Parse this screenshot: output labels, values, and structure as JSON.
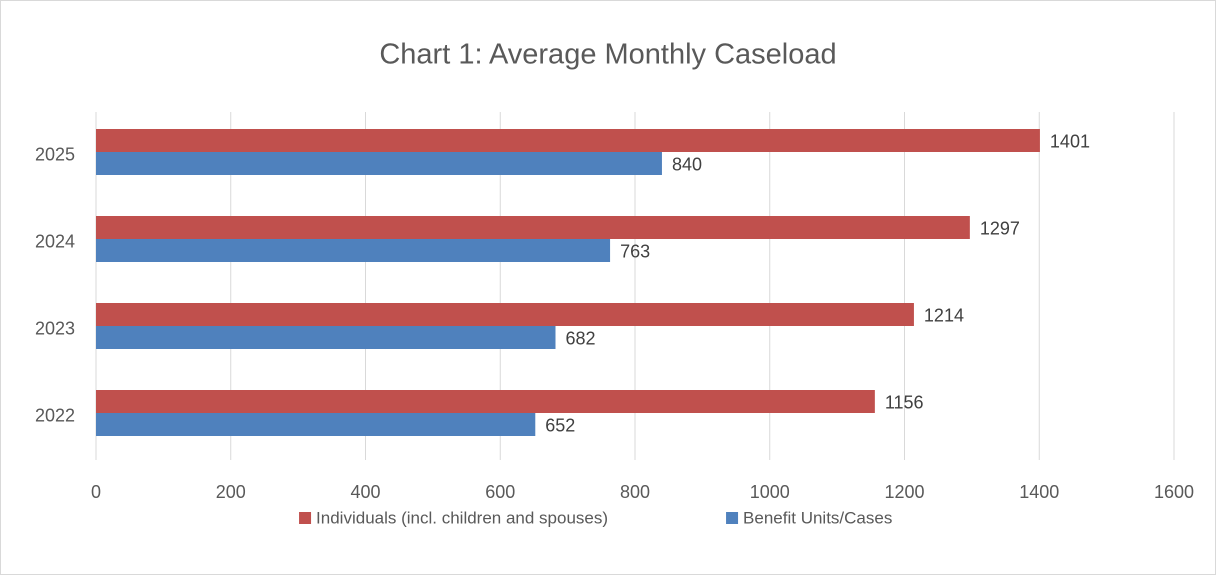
{
  "chart_data": {
    "type": "barh",
    "title": "Chart 1: Average Monthly Caseload",
    "categories": [
      "2022",
      "2023",
      "2024",
      "2025"
    ],
    "series": [
      {
        "name": "Individuals (incl. children and spouses)",
        "color": "#c0504d",
        "values": [
          1156,
          1214,
          1297,
          1401
        ]
      },
      {
        "name": "Benefit Units/Cases",
        "color": "#4f81bd",
        "values": [
          652,
          682,
          763,
          840
        ]
      }
    ],
    "xlim": [
      0,
      1600
    ],
    "xticks": [
      0,
      200,
      400,
      600,
      800,
      1000,
      1200,
      1400,
      1600
    ],
    "grid": true,
    "legend": "bottom"
  }
}
